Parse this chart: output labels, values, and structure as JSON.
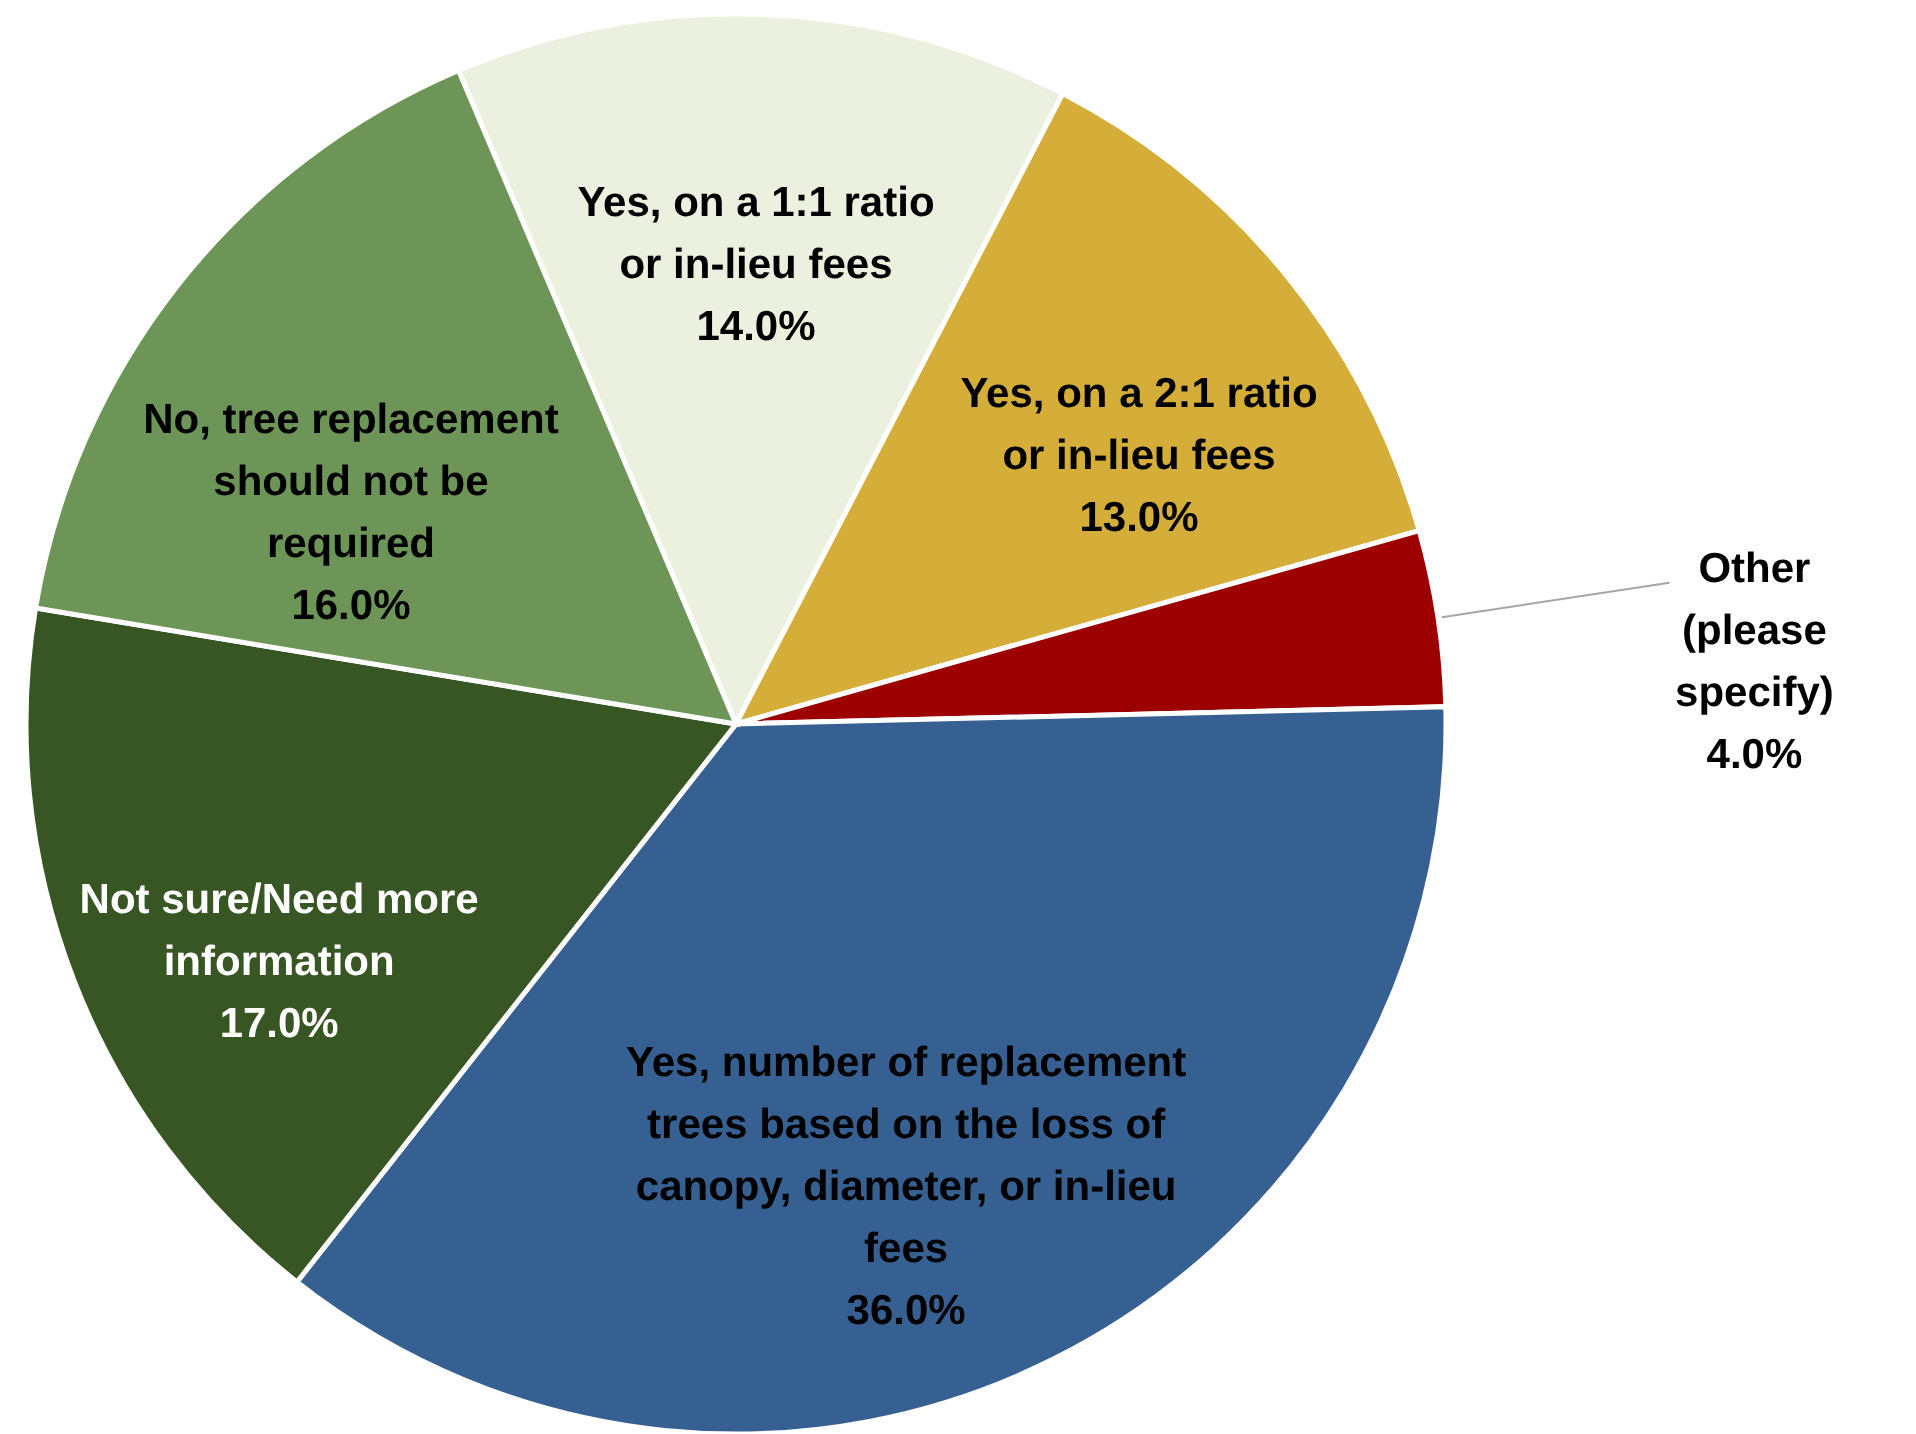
{
  "chart_data": {
    "type": "pie",
    "categories": [
      "Yes, on a 1:1 ratio or in-lieu fees",
      "Yes, on a 2:1 ratio or in-lieu fees",
      "Other (please specify)",
      "Yes, number of replacement trees based on the loss of canopy, diameter, or in-lieu fees",
      "Not sure/Need more information",
      "No, tree replacement should not be required"
    ],
    "values": [
      14,
      13,
      4,
      36,
      17,
      16
    ],
    "value_labels": [
      "14.0%",
      "13.0%",
      "4.0%",
      "36.0%",
      "17.0%",
      "16.0%"
    ],
    "colors": [
      "#ebf1de",
      "#d4ae38",
      "#9c0000",
      "#376092",
      "#375623",
      "#6e9558"
    ]
  }
}
